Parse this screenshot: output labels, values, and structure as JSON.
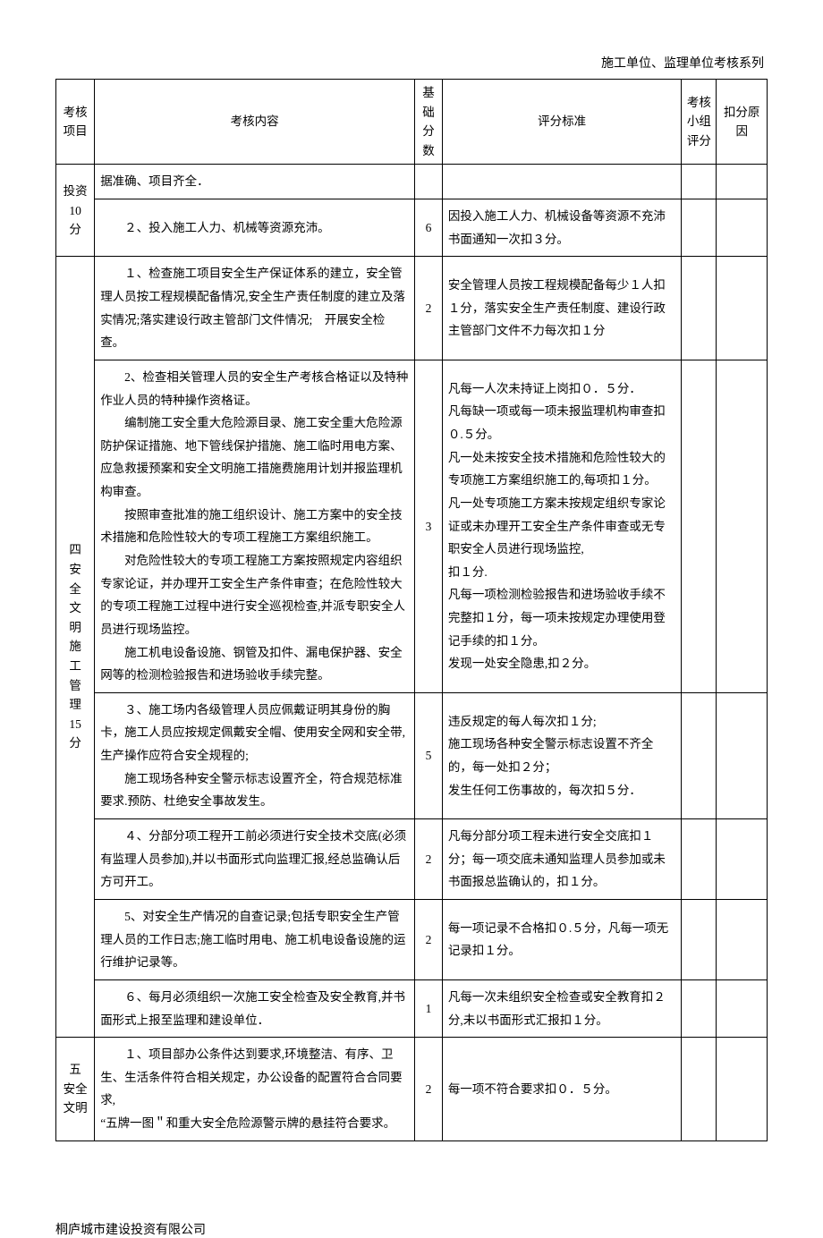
{
  "doc": {
    "header_right": "施工单位、监理单位考核系列",
    "footer": "桐庐城市建设投资有限公司"
  },
  "table": {
    "headers": {
      "project": "考核\n项目",
      "content": "考核内容",
      "base": "基础分数",
      "criteria": "评分标准",
      "group_score": "考核小组评分",
      "reason": "扣分原因"
    },
    "rows": [
      {
        "project": "投资\n10\n分",
        "project_rowspan": 2,
        "content": "据准确、项目齐全．",
        "base": "",
        "criteria": ""
      },
      {
        "content": "　　２、投入施工人力、机械等资源充沛。",
        "base": "6",
        "criteria": "因投入施工人力、机械设备等资源不充沛书面通知一次扣３分。"
      },
      {
        "project": "四\n安\n全\n文\n明\n施\n工\n管\n理\n15\n分",
        "project_rowspan": 6,
        "content": "　　１、检查施工项目安全生产保证体系的建立，安全管理人员按工程规模配备情况,安全生产责任制度的建立及落实情况;落实建设行政主管部门文件情况;　开展安全检查。",
        "base": "2",
        "criteria": "安全管理人员按工程规模配备每少１人扣１分，落实安全生产责任制度、建设行政主管部门文件不力每次扣１分"
      },
      {
        "content": "　　2、检查相关管理人员的安全生产考核合格证以及特种作业人员的特种操作资格证。\n　　编制施工安全重大危险源目录、施工安全重大危险源防护保证措施、地下管线保护措施、施工临时用电方案、应急救援预案和安全文明施工措施费施用计划并报监理机构审查。\n　　按照审查批准的施工组织设计、施工方案中的安全技术措施和危险性较大的专项工程施工方案组织施工。\n　　对危险性较大的专项工程施工方案按照规定内容组织专家论证，并办理开工安全生产条件审查；在危险性较大的专项工程施工过程中进行安全巡视检查,并派专职安全人员进行现场监控。\n　　施工机电设备设施、钢管及扣件、漏电保护器、安全网等的检测检验报告和进场验收手续完整。",
        "base": "3",
        "criteria": "凡每一人次未持证上岗扣０．５分．\n凡每缺一项或每一项未报监理机构审查扣０.５分。\n凡一处未按安全技术措施和危险性较大的专项施工方案组织施工的,每项扣１分。\n凡一处专项施工方案未按规定组织专家论证或未办理开工安全生产条件审查或无专职安全人员进行现场监控,\n扣１分.\n凡每一项检测检验报告和进场验收手续不完整扣１分，每一项未按规定办理使用登记手续的扣１分。\n发现一处安全隐患,扣２分。"
      },
      {
        "content": "　　３、施工场内各级管理人员应佩戴证明其身份的胸卡，施工人员应按规定佩戴安全帽、使用安全网和安全带,生产操作应符合安全规程的;\n　　施工现场各种安全警示标志设置齐全，符合规范标准要求.预防、杜绝安全事故发生。",
        "base": "5",
        "criteria": "违反规定的每人每次扣１分;\n施工现场各种安全警示标志设置不齐全的，每一处扣２分；\n发生任何工伤事故的，每次扣５分．"
      },
      {
        "content": "　　４、分部分项工程开工前必须进行安全技术交底(必须有监理人员参加),并以书面形式向监理汇报,经总监确认后方可开工。",
        "base": "2",
        "criteria": "凡每分部分项工程未进行安全交底扣１分；每一项交底未通知监理人员参加或未书面报总监确认的，扣１分。"
      },
      {
        "content": "　　5、对安全生产情况的自查记录;包括专职安全生产管理人员的工作日志;施工临时用电、施工机电设备设施的运行维护记录等。",
        "base": "2",
        "criteria": "每一项记录不合格扣０.５分，凡每一项无记录扣１分。"
      },
      {
        "content": "　　６、每月必须组织一次施工安全检查及安全教育,并书面形式上报至监理和建设单位．",
        "base": "1",
        "criteria": "凡每一次未组织安全检查或安全教育扣２分,未以书面形式汇报扣１分。"
      },
      {
        "project": "五\n安全\n文明",
        "project_rowspan": 1,
        "content": "　　１、项目部办公条件达到要求,环境整洁、有序、卫生、生活条件符合相关规定，办公设备的配置符合合同要求,\n“五牌一图＂和重大安全危险源警示牌的悬挂符合要求。",
        "base": "2",
        "criteria": "每一项不符合要求扣０．５分。"
      }
    ]
  }
}
